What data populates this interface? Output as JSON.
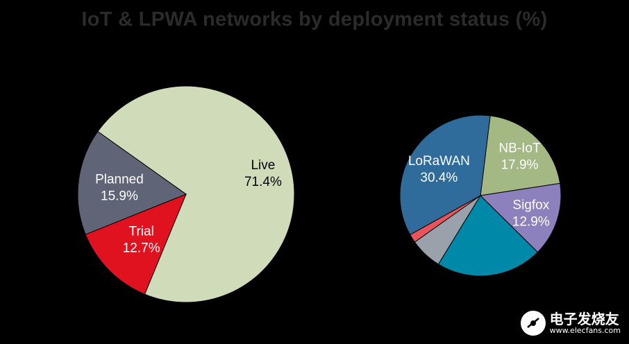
{
  "chart_data": [
    {
      "type": "pie",
      "title": "IoT & LPWA networks by deployment status (%)",
      "slices": [
        {
          "label": "Live",
          "value": 71.4,
          "value_text": "71.4%",
          "color": "#d0dcb9",
          "text_color": "#000000"
        },
        {
          "label": "Trial",
          "value": 12.7,
          "value_text": "12.7%",
          "color": "#e0121f",
          "text_color": "#ffffff"
        },
        {
          "label": "Planned",
          "value": 15.9,
          "value_text": "15.9%",
          "color": "#5f6477",
          "text_color": "#ffffff"
        }
      ]
    },
    {
      "type": "pie",
      "slices": [
        {
          "label": "NB-IoT",
          "value": 17.9,
          "value_text": "17.9%",
          "color": "#a3b882",
          "text_color": "#ffffff"
        },
        {
          "label": "Sigfox",
          "value": 12.9,
          "value_text": "12.9%",
          "color": "#8c80bd",
          "text_color": "#ffffff"
        },
        {
          "label": "",
          "value": 18.5,
          "value_text": "",
          "color": "#0088a8",
          "text_color": "#ffffff"
        },
        {
          "label": "",
          "value": 5.6,
          "value_text": "",
          "color": "#9aa1ab",
          "text_color": "#ffffff"
        },
        {
          "label": "",
          "value": 1.5,
          "value_text": "",
          "color": "#e8545c",
          "text_color": "#ffffff"
        },
        {
          "label": "LoRaWAN",
          "value": 30.4,
          "value_text": "30.4%",
          "color": "#2f6c9c",
          "text_color": "#ffffff"
        }
      ]
    }
  ],
  "watermark": {
    "cn_text": "电子发烧友",
    "url_text": "www.elecfans.com"
  }
}
